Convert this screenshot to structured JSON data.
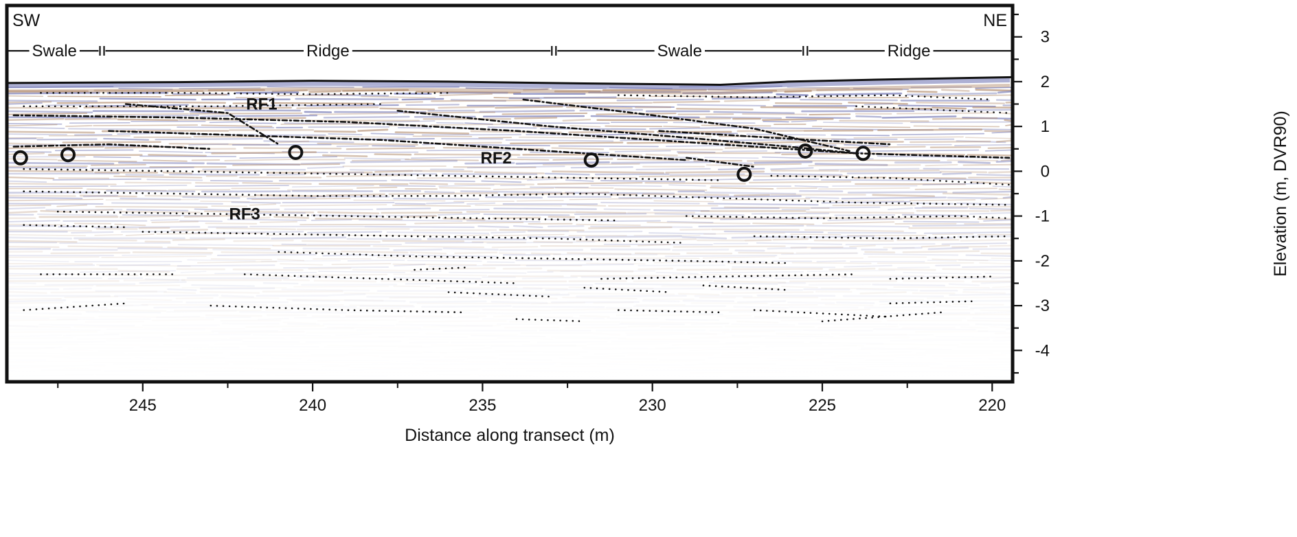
{
  "chart_data": {
    "type": "scatter",
    "xlabel": "Distance along transect (m)",
    "ylabel": "Elevation (m, DVR90)",
    "xlim": [
      249.0,
      219.4
    ],
    "ylim": [
      -4.7,
      3.7
    ],
    "x_reversed": true,
    "x_ticks": [
      245,
      240,
      235,
      230,
      225,
      220
    ],
    "y_ticks": [
      3,
      2,
      1,
      0,
      -1,
      -2,
      -3,
      -4
    ],
    "direction_labels": {
      "left": "SW",
      "right": "NE"
    },
    "zones": [
      {
        "label": "Swale",
        "x_start": 249.0,
        "x_end": 246.2
      },
      {
        "label": "Ridge",
        "x_start": 246.2,
        "x_end": 232.9
      },
      {
        "label": "Swale",
        "x_start": 232.9,
        "x_end": 225.5
      },
      {
        "label": "Ridge",
        "x_start": 225.5,
        "x_end": 219.4
      }
    ],
    "surface": {
      "x": [
        249.0,
        244,
        240,
        236,
        232,
        228,
        226,
        223,
        219.4
      ],
      "y": [
        1.97,
        1.99,
        2.02,
        2.0,
        1.96,
        1.93,
        2.0,
        2.05,
        2.1
      ]
    },
    "radar_facies": [
      {
        "label": "RF1",
        "x": 241.5,
        "y": 1.5
      },
      {
        "label": "RF2",
        "x": 234.6,
        "y": 0.3
      },
      {
        "label": "RF3",
        "x": 242.0,
        "y": -0.95
      }
    ],
    "markers": {
      "name": "circles",
      "x": [
        248.6,
        247.2,
        240.5,
        231.8,
        227.3,
        225.5,
        223.8
      ],
      "y": [
        0.3,
        0.37,
        0.42,
        0.25,
        -0.07,
        0.45,
        0.4
      ]
    },
    "reflectors_dashed": [
      {
        "x": [
          248.8,
          244,
          239,
          234,
          230,
          227,
          224,
          219.5
        ],
        "y": [
          1.25,
          1.2,
          1.1,
          0.9,
          0.7,
          0.55,
          0.4,
          0.3
        ]
      },
      {
        "x": [
          246,
          242,
          238,
          235,
          232,
          229
        ],
        "y": [
          0.9,
          0.8,
          0.7,
          0.55,
          0.4,
          0.25
        ]
      },
      {
        "x": [
          245.5,
          242.5,
          241
        ],
        "y": [
          1.5,
          1.3,
          0.6
        ]
      },
      {
        "x": [
          237.5,
          233,
          229,
          226,
          224
        ],
        "y": [
          1.35,
          1.0,
          0.75,
          0.55,
          0.4
        ]
      },
      {
        "x": [
          233.8,
          230,
          227,
          224.2
        ],
        "y": [
          1.6,
          1.25,
          0.95,
          0.45
        ]
      },
      {
        "x": [
          229.8,
          226.5,
          223
        ],
        "y": [
          0.9,
          0.75,
          0.6
        ]
      },
      {
        "x": [
          248.8,
          246,
          243
        ],
        "y": [
          0.55,
          0.6,
          0.5
        ]
      },
      {
        "x": [
          229,
          227
        ],
        "y": [
          0.3,
          0.1
        ]
      }
    ],
    "reflectors_dotted": [
      {
        "x": [
          248,
          244,
          240,
          236
        ],
        "y": [
          1.75,
          1.75,
          1.72,
          1.75
        ]
      },
      {
        "x": [
          231,
          227,
          223,
          220
        ],
        "y": [
          1.7,
          1.65,
          1.7,
          1.6
        ]
      },
      {
        "x": [
          248.5,
          243,
          238
        ],
        "y": [
          1.45,
          1.45,
          1.5
        ]
      },
      {
        "x": [
          224,
          221,
          219.5
        ],
        "y": [
          1.45,
          1.35,
          1.3
        ]
      },
      {
        "x": [
          248.5,
          244,
          240,
          236,
          232,
          228
        ],
        "y": [
          0.05,
          0.0,
          -0.05,
          -0.1,
          -0.15,
          -0.2
        ]
      },
      {
        "x": [
          226.5,
          223,
          219.5
        ],
        "y": [
          -0.1,
          -0.15,
          -0.3
        ]
      },
      {
        "x": [
          248.5,
          244,
          240,
          236,
          232,
          228,
          224,
          219.5
        ],
        "y": [
          -0.45,
          -0.5,
          -0.55,
          -0.55,
          -0.5,
          -0.6,
          -0.7,
          -0.75
        ]
      },
      {
        "x": [
          247.5,
          243,
          239,
          235,
          231
        ],
        "y": [
          -0.9,
          -0.95,
          -1.0,
          -1.05,
          -1.1
        ]
      },
      {
        "x": [
          229,
          225,
          221,
          219.5
        ],
        "y": [
          -1.0,
          -1.05,
          -1.0,
          -1.05
        ]
      },
      {
        "x": [
          248.5,
          245.5
        ],
        "y": [
          -1.2,
          -1.25
        ]
      },
      {
        "x": [
          245,
          241,
          237,
          233,
          229
        ],
        "y": [
          -1.35,
          -1.4,
          -1.45,
          -1.5,
          -1.6
        ]
      },
      {
        "x": [
          227,
          223,
          219.5
        ],
        "y": [
          -1.45,
          -1.5,
          -1.45
        ]
      },
      {
        "x": [
          241,
          237,
          233,
          229,
          226
        ],
        "y": [
          -1.8,
          -1.9,
          -1.95,
          -2.0,
          -2.05
        ]
      },
      {
        "x": [
          237,
          235.5
        ],
        "y": [
          -2.2,
          -2.15
        ]
      },
      {
        "x": [
          248,
          244
        ],
        "y": [
          -2.3,
          -2.3
        ]
      },
      {
        "x": [
          242,
          238,
          234
        ],
        "y": [
          -2.3,
          -2.4,
          -2.5
        ]
      },
      {
        "x": [
          231.5,
          228,
          224
        ],
        "y": [
          -2.4,
          -2.35,
          -2.3
        ]
      },
      {
        "x": [
          223,
          220
        ],
        "y": [
          -2.4,
          -2.35
        ]
      },
      {
        "x": [
          236,
          233
        ],
        "y": [
          -2.7,
          -2.8
        ]
      },
      {
        "x": [
          232,
          229.5
        ],
        "y": [
          -2.6,
          -2.7
        ]
      },
      {
        "x": [
          228.5,
          226
        ],
        "y": [
          -2.55,
          -2.65
        ]
      },
      {
        "x": [
          248.5,
          245.5
        ],
        "y": [
          -3.1,
          -2.95
        ]
      },
      {
        "x": [
          243,
          239,
          235.5
        ],
        "y": [
          -3.0,
          -3.1,
          -3.15
        ]
      },
      {
        "x": [
          234,
          232
        ],
        "y": [
          -3.3,
          -3.35
        ]
      },
      {
        "x": [
          231,
          228
        ],
        "y": [
          -3.1,
          -3.15
        ]
      },
      {
        "x": [
          227,
          223
        ],
        "y": [
          -3.1,
          -3.25
        ]
      },
      {
        "x": [
          223,
          220.5
        ],
        "y": [
          -2.95,
          -2.9
        ]
      },
      {
        "x": [
          225,
          221.5
        ],
        "y": [
          -3.35,
          -3.15
        ]
      }
    ],
    "grid": false,
    "legend": "none",
    "colors": {
      "radargram_blue": "#6a6fb0",
      "radargram_brown": "#b08868",
      "frame": "#111111",
      "annotation": "#111111"
    }
  }
}
